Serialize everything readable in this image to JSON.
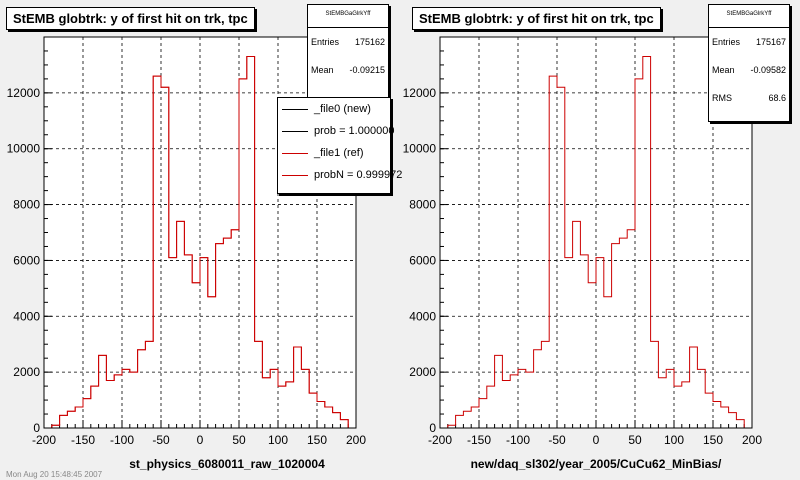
{
  "panels": [
    {
      "title": "StEMB globtrk: y of first hit on trk, tpc",
      "stats": {
        "name": "StEMBGaGlrkYff",
        "rows": [
          {
            "label": "Entries",
            "value": "175162"
          },
          {
            "label": "Mean",
            "value": "-0.09215"
          }
        ]
      },
      "legend": [
        {
          "label": "_file0 (new)",
          "color": "#000000"
        },
        {
          "label": "prob = 1.000000",
          "color": "#000000"
        },
        {
          "label": "_file1 (ref)",
          "color": "#cc0000"
        },
        {
          "label": "probN = 0.999972",
          "color": "#cc0000"
        }
      ],
      "xlabel": "st_physics_6080011_raw_1020004"
    },
    {
      "title": "StEMB globtrk: y of first hit on trk, tpc",
      "stats": {
        "name": "StEMBGaGlrkYff",
        "rows": [
          {
            "label": "Entries",
            "value": "175167"
          },
          {
            "label": "Mean",
            "value": "-0.09582"
          },
          {
            "label": "RMS",
            "value": "68.6"
          }
        ]
      },
      "xlabel": "new/daq_sl302/year_2005/CuCu62_MinBias/"
    }
  ],
  "footer": "Mon Aug 20 15:48:45 2007",
  "colors": {
    "reference_line": "#cc0000",
    "new_line": "#000000",
    "frame_bg": "#ffffff",
    "page_bg": "#f0f0f0"
  },
  "chart_data": [
    {
      "type": "line",
      "x_tick_labels": [
        "-200",
        "-150",
        "-100",
        "-50",
        "0",
        "50",
        "100",
        "150",
        "200"
      ],
      "y_tick_labels": [
        "0",
        "2000",
        "4000",
        "6000",
        "8000",
        "10000",
        "12000"
      ],
      "xlim": [
        -200,
        200
      ],
      "ylim": [
        0,
        14000
      ],
      "grid": true,
      "bin_edges": [
        -190,
        -180,
        -170,
        -160,
        -150,
        -140,
        -130,
        -120,
        -110,
        -100,
        -90,
        -80,
        -70,
        -60,
        -50,
        -40,
        -30,
        -20,
        -10,
        0,
        10,
        20,
        30,
        40,
        50,
        60,
        70,
        80,
        90,
        100,
        110,
        120,
        130,
        140,
        150,
        160,
        170,
        180,
        190
      ],
      "series": [
        {
          "name": "_file0 (new)",
          "values": [
            100,
            450,
            600,
            750,
            1050,
            1500,
            2600,
            1700,
            1900,
            2100,
            2000,
            2800,
            3100,
            12600,
            12200,
            6100,
            7400,
            6200,
            5200,
            6100,
            4700,
            6600,
            6800,
            7100,
            12500,
            13300,
            3100,
            1800,
            2100,
            1500,
            1650,
            2900,
            2100,
            1250,
            950,
            750,
            550,
            300
          ]
        },
        {
          "name": "_file1 (ref)",
          "values": [
            100,
            450,
            600,
            750,
            1050,
            1500,
            2600,
            1700,
            1900,
            2100,
            2000,
            2800,
            3100,
            12600,
            12200,
            6100,
            7400,
            6200,
            5200,
            6100,
            4700,
            6600,
            6800,
            7100,
            12500,
            13300,
            3100,
            1800,
            2100,
            1500,
            1650,
            2900,
            2100,
            1250,
            950,
            750,
            550,
            300
          ]
        }
      ]
    },
    {
      "type": "line",
      "x_tick_labels": [
        "-200",
        "-150",
        "-100",
        "-50",
        "0",
        "50",
        "100",
        "150",
        "200"
      ],
      "y_tick_labels": [
        "0",
        "2000",
        "4000",
        "6000",
        "8000",
        "10000",
        "12000"
      ],
      "xlim": [
        -200,
        200
      ],
      "ylim": [
        0,
        14000
      ],
      "grid": true,
      "bin_edges": [
        -190,
        -180,
        -170,
        -160,
        -150,
        -140,
        -130,
        -120,
        -110,
        -100,
        -90,
        -80,
        -70,
        -60,
        -50,
        -40,
        -30,
        -20,
        -10,
        0,
        10,
        20,
        30,
        40,
        50,
        60,
        70,
        80,
        90,
        100,
        110,
        120,
        130,
        140,
        150,
        160,
        170,
        180,
        190
      ],
      "series": [
        {
          "name": "",
          "values": [
            100,
            450,
            600,
            750,
            1050,
            1500,
            2600,
            1700,
            1900,
            2100,
            2000,
            2800,
            3100,
            12600,
            12200,
            6100,
            7400,
            6200,
            5200,
            6100,
            4700,
            6600,
            6800,
            7100,
            12500,
            13300,
            3100,
            1800,
            2100,
            1500,
            1650,
            2900,
            2100,
            1250,
            950,
            750,
            550,
            300
          ]
        }
      ]
    }
  ]
}
